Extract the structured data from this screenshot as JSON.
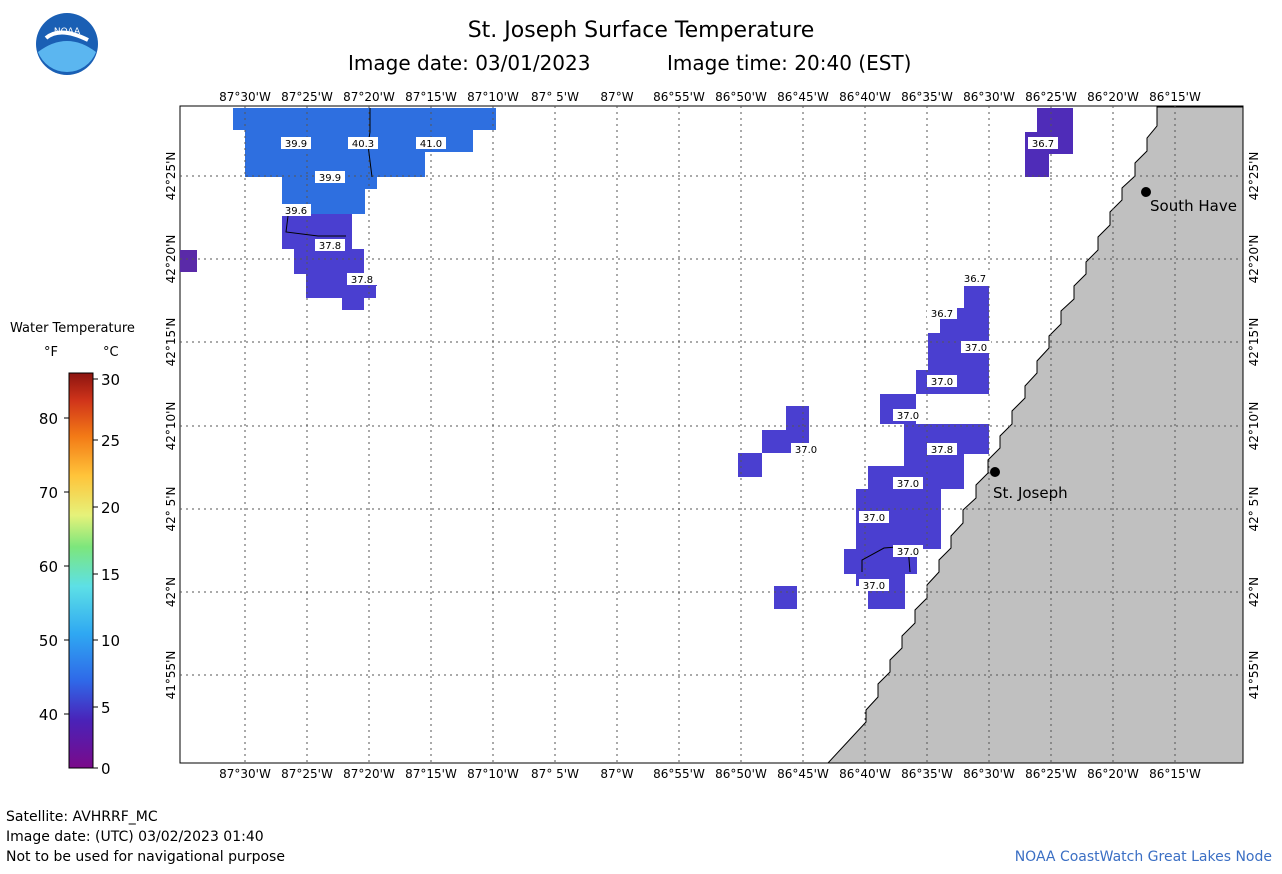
{
  "header": {
    "title": "St. Joseph Surface Temperature",
    "image_date": "Image date: 03/01/2023",
    "image_time": "Image time: 20:40 (EST)"
  },
  "logo": {
    "text": "NOAA"
  },
  "map": {
    "lon_labels": [
      "87°30'W",
      "87°25'W",
      "87°20'W",
      "87°15'W",
      "87°10'W",
      "87° 5'W",
      "87°W",
      "86°55'W",
      "86°50'W",
      "86°45'W",
      "86°40'W",
      "86°35'W",
      "86°30'W",
      "86°25'W",
      "86°20'W",
      "86°15'W"
    ],
    "lat_labels": [
      "42°25'N",
      "42°20'N",
      "42°15'N",
      "42°10'N",
      "42° 5'N",
      "42°N",
      "41°55'N"
    ],
    "places": [
      {
        "name": "South Have"
      },
      {
        "name": "St. Joseph"
      }
    ],
    "temperature_labels_f": [
      "39.9",
      "40.3",
      "41.0",
      "39.9",
      "39.6",
      "37.8",
      "37.8",
      "36.7",
      "36.7",
      "36.7",
      "37.0",
      "37.0",
      "37.0",
      "37.0",
      "37.8",
      "37.0",
      "37.0",
      "37.0",
      "37.0"
    ],
    "land_color": "#c0c0c0",
    "water_colors": {
      "t40": "#2e6fe0",
      "t37": "#4a3fd0",
      "t36": "#4f2cb8",
      "cold": "#5a2aa8"
    }
  },
  "legend": {
    "title": "Water Temperature",
    "unit_f": "°F",
    "unit_c": "°C",
    "f_ticks": [
      "80",
      "70",
      "60",
      "50",
      "40"
    ],
    "c_ticks": [
      "30",
      "25",
      "20",
      "15",
      "10",
      "5",
      "0"
    ]
  },
  "footer": {
    "satellite": "Satellite: AVHRRF_MC",
    "utc_date": "Image date: (UTC) 03/02/2023  01:40",
    "disclaimer": "Not to be used for navigational purpose",
    "credit": "NOAA CoastWatch Great Lakes Node"
  }
}
